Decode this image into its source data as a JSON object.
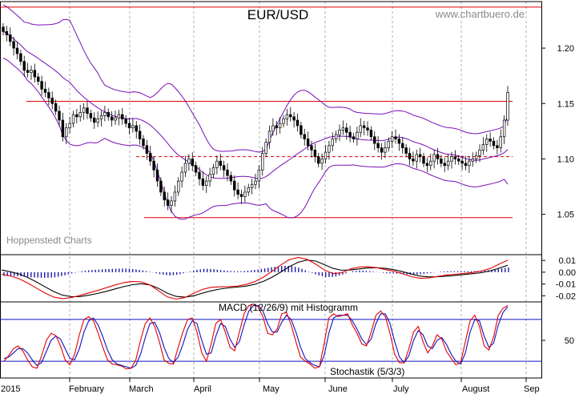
{
  "header": {
    "title": "EUR/USD",
    "source": "www.chartbuero.de",
    "watermark": "Hoppenstedt Charts"
  },
  "colors": {
    "background": "#ffffff",
    "candle_up": "#ffffff",
    "candle_down": "#000000",
    "bollinger": "#7a0fb5",
    "level_line": "#e60000",
    "macd_line": "#e60000",
    "signal_line": "#000000",
    "histogram": "#1a1aaa",
    "stoch_k": "#e60000",
    "stoch_d": "#1010c0",
    "stoch_bounds": "#1010c0",
    "grid": "#9a9a9a"
  },
  "chart_data": [
    {
      "type": "candlestick",
      "title": "EUR/USD",
      "x_ticks": [
        "2015",
        "February",
        "March",
        "April",
        "May",
        "June",
        "July",
        "August",
        "Sep"
      ],
      "y_ticks": [
        "1.20",
        "1.15",
        "1.10",
        "1.05"
      ],
      "ylim": [
        1.015,
        1.242
      ],
      "series": [
        {
          "values": [
            1.215,
            1.212,
            1.206,
            1.2,
            1.195,
            1.188,
            1.18,
            1.178,
            1.18,
            1.174,
            1.17,
            1.163,
            1.16,
            1.155,
            1.15,
            1.143,
            1.135,
            1.12,
            1.128,
            1.132,
            1.14,
            1.138,
            1.142,
            1.146,
            1.141,
            1.137,
            1.133,
            1.136,
            1.139,
            1.142,
            1.138,
            1.135,
            1.137,
            1.14,
            1.136,
            1.132,
            1.128,
            1.13,
            1.125,
            1.118,
            1.112,
            1.105,
            1.098,
            1.09,
            1.08,
            1.07,
            1.063,
            1.058,
            1.062,
            1.07,
            1.08,
            1.088,
            1.096,
            1.1,
            1.094,
            1.088,
            1.082,
            1.076,
            1.08,
            1.086,
            1.092,
            1.098,
            1.094,
            1.09,
            1.085,
            1.08,
            1.072,
            1.068,
            1.066,
            1.07,
            1.074,
            1.077,
            1.08,
            1.09,
            1.105,
            1.115,
            1.125,
            1.13,
            1.128,
            1.132,
            1.136,
            1.14,
            1.138,
            1.135,
            1.13,
            1.122,
            1.118,
            1.112,
            1.108,
            1.102,
            1.096,
            1.1,
            1.106,
            1.112,
            1.118,
            1.122,
            1.126,
            1.128,
            1.124,
            1.12,
            1.118,
            1.124,
            1.13,
            1.128,
            1.126,
            1.12,
            1.114,
            1.11,
            1.106,
            1.11,
            1.116,
            1.12,
            1.118,
            1.114,
            1.11,
            1.105,
            1.1,
            1.098,
            1.104,
            1.102,
            1.096,
            1.094,
            1.098,
            1.104,
            1.1,
            1.096,
            1.094,
            1.098,
            1.102,
            1.1,
            1.098,
            1.096,
            1.094,
            1.098,
            1.1,
            1.103,
            1.108,
            1.113,
            1.118,
            1.116,
            1.112,
            1.11,
            1.12,
            1.135,
            1.16
          ]
        },
        {
          "name": "Bollinger",
          "values": []
        }
      ],
      "annotations": [
        {
          "label": "1.237 level",
          "value": 1.237
        },
        {
          "label": "1.152 level",
          "value": 1.152
        },
        {
          "label": "1.047 level",
          "value": 1.047
        },
        {
          "label": "1.102 dashed",
          "value": 1.102
        }
      ]
    },
    {
      "type": "line",
      "title": "MACD (12/26/9) mit Histogramm",
      "y_ticks": [
        "0.01",
        "0.00",
        "-0.01",
        "-0.02"
      ],
      "ylim": [
        -0.0245,
        0.0135
      ],
      "series": [
        {
          "name": "MACD",
          "values": [
            -0.0018,
            -0.0032,
            -0.0055,
            -0.0092,
            -0.0135,
            -0.0178,
            -0.0212,
            -0.0224,
            -0.0215,
            -0.0196,
            -0.0175,
            -0.0155,
            -0.0132,
            -0.0108,
            -0.0088,
            -0.0078,
            -0.0082,
            -0.0108,
            -0.0158,
            -0.021,
            -0.0228,
            -0.0215,
            -0.018,
            -0.0146,
            -0.0128,
            -0.0124,
            -0.0122,
            -0.0118,
            -0.0104,
            -0.008,
            -0.0042,
            0.0008,
            0.0062,
            0.0108,
            0.0125,
            0.0109,
            0.0068,
            0.0018,
            -0.0012,
            -0.0004,
            0.0028,
            0.0044,
            0.0046,
            0.0038,
            0.0022,
            0.0008,
            -0.0014,
            -0.0038,
            -0.0052,
            -0.0048,
            -0.0036,
            -0.0024,
            -0.0018,
            -0.001,
            -0.0002,
            0.001,
            0.0032,
            0.0068,
            0.0102
          ]
        },
        {
          "name": "Signal",
          "values": [
            0.0018,
            0.0004,
            -0.0015,
            -0.0045,
            -0.0083,
            -0.0125,
            -0.0165,
            -0.0195,
            -0.0208,
            -0.0206,
            -0.0195,
            -0.018,
            -0.0162,
            -0.0142,
            -0.0122,
            -0.0106,
            -0.0098,
            -0.0108,
            -0.0138,
            -0.0178,
            -0.0205,
            -0.0212,
            -0.02,
            -0.0178,
            -0.0158,
            -0.0143,
            -0.0133,
            -0.0126,
            -0.0118,
            -0.0103,
            -0.0078,
            -0.0042,
            0.0002,
            0.0048,
            0.0085,
            0.0103,
            0.0094,
            0.0064,
            0.0032,
            0.0016,
            0.0019,
            0.0028,
            0.0036,
            0.0038,
            0.0032,
            0.0021,
            0.0004,
            -0.0016,
            -0.0033,
            -0.004,
            -0.0039,
            -0.0033,
            -0.0027,
            -0.002,
            -0.0012,
            -0.0004,
            0.0012,
            0.0034,
            0.0058
          ]
        }
      ]
    },
    {
      "type": "line",
      "title": "Stochastik (5/3/3)",
      "y_ticks": [
        "50"
      ],
      "ylim": [
        -4,
        104
      ],
      "series": [
        {
          "name": "%K",
          "values": [
            20,
            28,
            38,
            42,
            35,
            22,
            12,
            10,
            28,
            50,
            60,
            57,
            42,
            22,
            15,
            30,
            58,
            80,
            84,
            78,
            60,
            40,
            22,
            16,
            15,
            13,
            9,
            10,
            22,
            50,
            74,
            82,
            70,
            48,
            22,
            17,
            16,
            40,
            62,
            80,
            82,
            62,
            32,
            20,
            45,
            74,
            80,
            62,
            40,
            35,
            62,
            88,
            100,
            102,
            98,
            84,
            60,
            58,
            66,
            88,
            90,
            72,
            48,
            26,
            20,
            16,
            10,
            12,
            45,
            82,
            88,
            84,
            86,
            88,
            72,
            60,
            45,
            42,
            62,
            86,
            92,
            84,
            60,
            30,
            18,
            18,
            38,
            62,
            70,
            48,
            32,
            42,
            58,
            52,
            34,
            24,
            15,
            18,
            48,
            78,
            86,
            70,
            42,
            36,
            55,
            86,
            96,
            100
          ]
        },
        {
          "name": "%D",
          "values": [
            24,
            26,
            32,
            38,
            38,
            32,
            22,
            14,
            18,
            34,
            50,
            56,
            52,
            38,
            24,
            22,
            38,
            62,
            78,
            82,
            72,
            55,
            36,
            22,
            16,
            14,
            12,
            10,
            14,
            30,
            54,
            74,
            76,
            62,
            40,
            24,
            18,
            26,
            44,
            66,
            78,
            74,
            50,
            30,
            32,
            56,
            74,
            70,
            52,
            40,
            48,
            72,
            92,
            100,
            100,
            92,
            74,
            62,
            62,
            76,
            86,
            80,
            62,
            40,
            24,
            18,
            14,
            12,
            28,
            60,
            82,
            86,
            86,
            86,
            78,
            66,
            52,
            44,
            52,
            74,
            88,
            88,
            74,
            48,
            26,
            18,
            28,
            50,
            64,
            58,
            42,
            38,
            50,
            54,
            44,
            30,
            20,
            16,
            32,
            62,
            80,
            78,
            56,
            40,
            46,
            72,
            90,
            98
          ]
        }
      ],
      "bounds": [
        80,
        20
      ]
    }
  ],
  "labels": {
    "macd": "MACD (12/26/9) mit Histogramm",
    "stoch": "Stochastik (5/3/3)"
  }
}
